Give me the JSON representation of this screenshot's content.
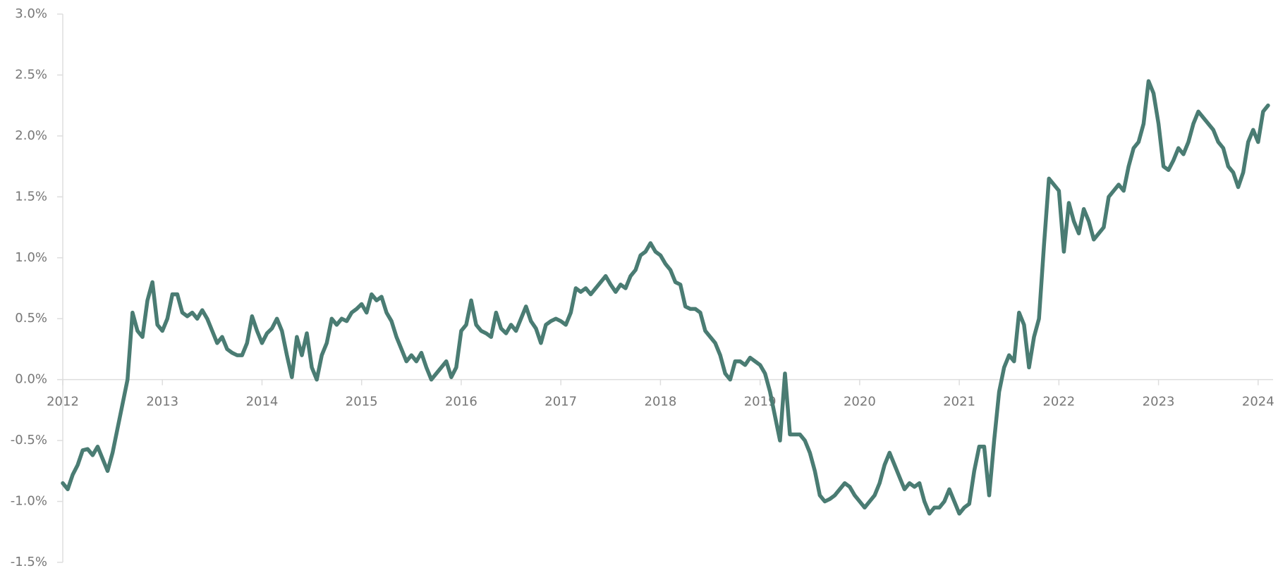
{
  "chart_data": {
    "type": "line",
    "x": [
      2012,
      2012.05,
      2012.1,
      2012.15,
      2012.2,
      2012.25,
      2012.3,
      2012.35,
      2012.4,
      2012.45,
      2012.5,
      2012.55,
      2012.6,
      2012.65,
      2012.7,
      2012.75,
      2012.8,
      2012.85,
      2012.9,
      2012.95,
      2013,
      2013.05,
      2013.1,
      2013.15,
      2013.2,
      2013.25,
      2013.3,
      2013.35,
      2013.4,
      2013.45,
      2013.5,
      2013.55,
      2013.6,
      2013.65,
      2013.7,
      2013.75,
      2013.8,
      2013.85,
      2013.9,
      2013.95,
      2014,
      2014.05,
      2014.1,
      2014.15,
      2014.2,
      2014.25,
      2014.3,
      2014.35,
      2014.4,
      2014.45,
      2014.5,
      2014.55,
      2014.6,
      2014.65,
      2014.7,
      2014.75,
      2014.8,
      2014.85,
      2014.9,
      2014.95,
      2015,
      2015.05,
      2015.1,
      2015.15,
      2015.2,
      2015.25,
      2015.3,
      2015.35,
      2015.4,
      2015.45,
      2015.5,
      2015.55,
      2015.6,
      2015.65,
      2015.7,
      2015.75,
      2015.8,
      2015.85,
      2015.9,
      2015.95,
      2016,
      2016.05,
      2016.1,
      2016.15,
      2016.2,
      2016.25,
      2016.3,
      2016.35,
      2016.4,
      2016.45,
      2016.5,
      2016.55,
      2016.6,
      2016.65,
      2016.7,
      2016.75,
      2016.8,
      2016.85,
      2016.9,
      2016.95,
      2017,
      2017.05,
      2017.1,
      2017.15,
      2017.2,
      2017.25,
      2017.3,
      2017.35,
      2017.4,
      2017.45,
      2017.5,
      2017.55,
      2017.6,
      2017.65,
      2017.7,
      2017.75,
      2017.8,
      2017.85,
      2017.9,
      2017.95,
      2018,
      2018.05,
      2018.1,
      2018.15,
      2018.2,
      2018.25,
      2018.3,
      2018.35,
      2018.4,
      2018.45,
      2018.5,
      2018.55,
      2018.6,
      2018.65,
      2018.7,
      2018.75,
      2018.8,
      2018.85,
      2018.9,
      2018.95,
      2019,
      2019.05,
      2019.1,
      2019.15,
      2019.2,
      2019.25,
      2019.3,
      2019.35,
      2019.4,
      2019.45,
      2019.5,
      2019.55,
      2019.6,
      2019.65,
      2019.7,
      2019.75,
      2019.8,
      2019.85,
      2019.9,
      2019.95,
      2020,
      2020.05,
      2020.1,
      2020.15,
      2020.2,
      2020.25,
      2020.3,
      2020.35,
      2020.4,
      2020.45,
      2020.5,
      2020.55,
      2020.6,
      2020.65,
      2020.7,
      2020.75,
      2020.8,
      2020.85,
      2020.9,
      2020.95,
      2021,
      2021.05,
      2021.1,
      2021.15,
      2021.2,
      2021.25,
      2021.3,
      2021.35,
      2021.4,
      2021.45,
      2021.5,
      2021.55,
      2021.6,
      2021.65,
      2021.7,
      2021.75,
      2021.8,
      2021.85,
      2021.9,
      2021.95,
      2022,
      2022.05,
      2022.1,
      2022.15,
      2022.2,
      2022.25,
      2022.3,
      2022.35,
      2022.4,
      2022.45,
      2022.5,
      2022.55,
      2022.6,
      2022.65,
      2022.7,
      2022.75,
      2022.8,
      2022.85,
      2022.9,
      2022.95,
      2023,
      2023.05,
      2023.1,
      2023.15,
      2023.2,
      2023.25,
      2023.3,
      2023.35,
      2023.4,
      2023.45,
      2023.5,
      2023.55,
      2023.6,
      2023.65,
      2023.7,
      2023.75,
      2023.8,
      2023.85,
      2023.9,
      2023.95,
      2024,
      2024.05,
      2024.1
    ],
    "series": [
      {
        "color": "#4a7c73",
        "values": [
          -0.85,
          -0.9,
          -0.78,
          -0.7,
          -0.58,
          -0.57,
          -0.62,
          -0.55,
          -0.65,
          -0.75,
          -0.6,
          -0.4,
          -0.2,
          0.0,
          0.55,
          0.4,
          0.35,
          0.65,
          0.8,
          0.45,
          0.4,
          0.5,
          0.7,
          0.7,
          0.55,
          0.52,
          0.55,
          0.5,
          0.57,
          0.5,
          0.4,
          0.3,
          0.35,
          0.25,
          0.22,
          0.2,
          0.2,
          0.3,
          0.52,
          0.4,
          0.3,
          0.38,
          0.42,
          0.5,
          0.4,
          0.2,
          0.02,
          0.35,
          0.2,
          0.38,
          0.1,
          0.0,
          0.2,
          0.3,
          0.5,
          0.45,
          0.5,
          0.48,
          0.55,
          0.58,
          0.62,
          0.55,
          0.7,
          0.65,
          0.68,
          0.55,
          0.48,
          0.35,
          0.25,
          0.15,
          0.2,
          0.15,
          0.22,
          0.1,
          0.0,
          0.05,
          0.1,
          0.15,
          0.02,
          0.1,
          0.4,
          0.45,
          0.65,
          0.45,
          0.4,
          0.38,
          0.35,
          0.55,
          0.42,
          0.38,
          0.45,
          0.4,
          0.5,
          0.6,
          0.48,
          0.42,
          0.3,
          0.45,
          0.48,
          0.5,
          0.48,
          0.45,
          0.55,
          0.75,
          0.72,
          0.75,
          0.7,
          0.75,
          0.8,
          0.85,
          0.78,
          0.72,
          0.78,
          0.75,
          0.85,
          0.9,
          1.02,
          1.05,
          1.12,
          1.05,
          1.02,
          0.95,
          0.9,
          0.8,
          0.78,
          0.6,
          0.58,
          0.58,
          0.55,
          0.4,
          0.35,
          0.3,
          0.2,
          0.05,
          0.0,
          0.15,
          0.15,
          0.12,
          0.18,
          0.15,
          0.12,
          0.05,
          -0.1,
          -0.3,
          -0.5,
          0.05,
          -0.45,
          -0.45,
          -0.45,
          -0.5,
          -0.6,
          -0.75,
          -0.95,
          -1.0,
          -0.98,
          -0.95,
          -0.9,
          -0.85,
          -0.88,
          -0.95,
          -1.0,
          -1.05,
          -1.0,
          -0.95,
          -0.85,
          -0.7,
          -0.6,
          -0.7,
          -0.8,
          -0.9,
          -0.85,
          -0.88,
          -0.85,
          -1.0,
          -1.1,
          -1.05,
          -1.05,
          -1.0,
          -0.9,
          -1.0,
          -1.1,
          -1.05,
          -1.02,
          -0.75,
          -0.55,
          -0.55,
          -0.95,
          -0.5,
          -0.1,
          0.1,
          0.2,
          0.15,
          0.55,
          0.45,
          0.1,
          0.35,
          0.5,
          1.1,
          1.65,
          1.6,
          1.55,
          1.05,
          1.45,
          1.3,
          1.2,
          1.4,
          1.3,
          1.15,
          1.2,
          1.25,
          1.5,
          1.55,
          1.6,
          1.55,
          1.75,
          1.9,
          1.95,
          2.1,
          2.45,
          2.35,
          2.1,
          1.75,
          1.72,
          1.8,
          1.9,
          1.85,
          1.95,
          2.1,
          2.2,
          2.15,
          2.1,
          2.05,
          1.95,
          1.9,
          1.75,
          1.7,
          1.58,
          1.7,
          1.95,
          2.05,
          1.95,
          2.2,
          2.25
        ]
      }
    ],
    "xlim": [
      2012,
      2024.15
    ],
    "xticks": [
      2012,
      2013,
      2014,
      2015,
      2016,
      2017,
      2018,
      2019,
      2020,
      2021,
      2022,
      2023,
      2024
    ],
    "ylim": [
      -1.5,
      3.0
    ],
    "yticks": [
      {
        "value": -1.5,
        "label": "-1.5%"
      },
      {
        "value": -1.0,
        "label": "-1.0%"
      },
      {
        "value": -0.5,
        "label": "-0.5%"
      },
      {
        "value": 0.0,
        "label": "0.0%"
      },
      {
        "value": 0.5,
        "label": "0.5%"
      },
      {
        "value": 1.0,
        "label": "1.0%"
      },
      {
        "value": 1.5,
        "label": "1.5%"
      },
      {
        "value": 2.0,
        "label": "2.0%"
      },
      {
        "value": 2.5,
        "label": "2.5%"
      },
      {
        "value": 3.0,
        "label": "3.0%"
      }
    ]
  }
}
